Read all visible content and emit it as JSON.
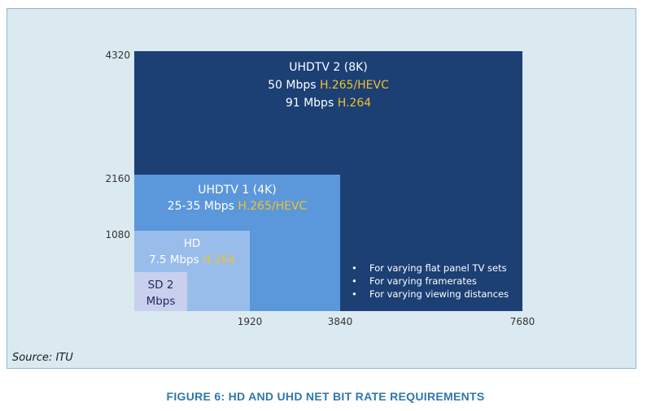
{
  "y_ticks": [
    "4320",
    "2160",
    "1080"
  ],
  "x_ticks": [
    "1920",
    "3840",
    "7680"
  ],
  "blocks": {
    "uhd8k": {
      "title": "UHDTV 2 (8K)",
      "line1_rate": "50 Mbps ",
      "line1_codec": "H.265/HEVC",
      "line2_rate": "91 Mbps ",
      "line2_codec": "H.264"
    },
    "uhd4k": {
      "title": "UHDTV 1 (4K)",
      "rate": "25-35 Mbps ",
      "codec": "H.265/HEVC"
    },
    "hd": {
      "title": "HD",
      "rate": "7.5 Mbps ",
      "codec": "H.264"
    },
    "sd": {
      "line1": "SD 2",
      "line2": "Mbps"
    }
  },
  "notes": [
    "For varying flat panel TV sets",
    "For varying framerates",
    "For varying viewing distances"
  ],
  "source": "Source: ITU",
  "caption": "FIGURE 6: HD AND UHD NET BIT RATE REQUIREMENTS",
  "colors": {
    "panel_bg": "#dbeaf0",
    "uhd8k": "#1c3f74",
    "uhd4k": "#5b97db",
    "hd": "#98bdeb",
    "sd": "#c8d0ee",
    "codec_highlight": "#f2c229",
    "caption": "#2f78ad"
  }
}
